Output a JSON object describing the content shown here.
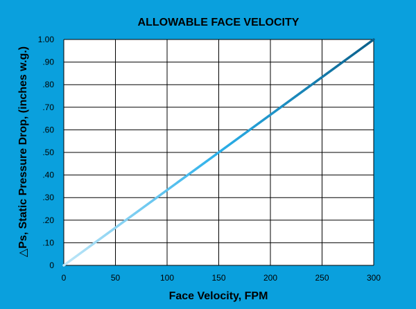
{
  "chart_data": {
    "type": "line",
    "title": "ALLOWABLE FACE VELOCITY",
    "xlabel": "Face Velocity, FPM",
    "ylabel": "△Ps, Static Pressure Drop, (inches w.g.)",
    "xlim": [
      0,
      300
    ],
    "ylim": [
      0,
      1.0
    ],
    "x_ticks": [
      0,
      50,
      100,
      150,
      200,
      250,
      300
    ],
    "x_tick_labels": [
      "0",
      "50",
      "100",
      "150",
      "200",
      "250",
      "300"
    ],
    "y_ticks": [
      0,
      0.1,
      0.2,
      0.3,
      0.4,
      0.5,
      0.6,
      0.7,
      0.8,
      0.9,
      1.0
    ],
    "y_tick_labels": [
      "0",
      ".10",
      ".20",
      ".30",
      ".40",
      ".50",
      ".60",
      ".70",
      ".80",
      ".90",
      "1.00"
    ],
    "grid": true,
    "series": [
      {
        "x": [
          0,
          300
        ],
        "y": [
          0,
          1.0
        ],
        "gradient_colors": [
          "#bfe6f7",
          "#2bb0ea",
          "#0a5f8a"
        ]
      }
    ],
    "colors": {
      "background": "#0aa0dd",
      "plot_area": "#ffffff",
      "grid": "#000000"
    }
  }
}
